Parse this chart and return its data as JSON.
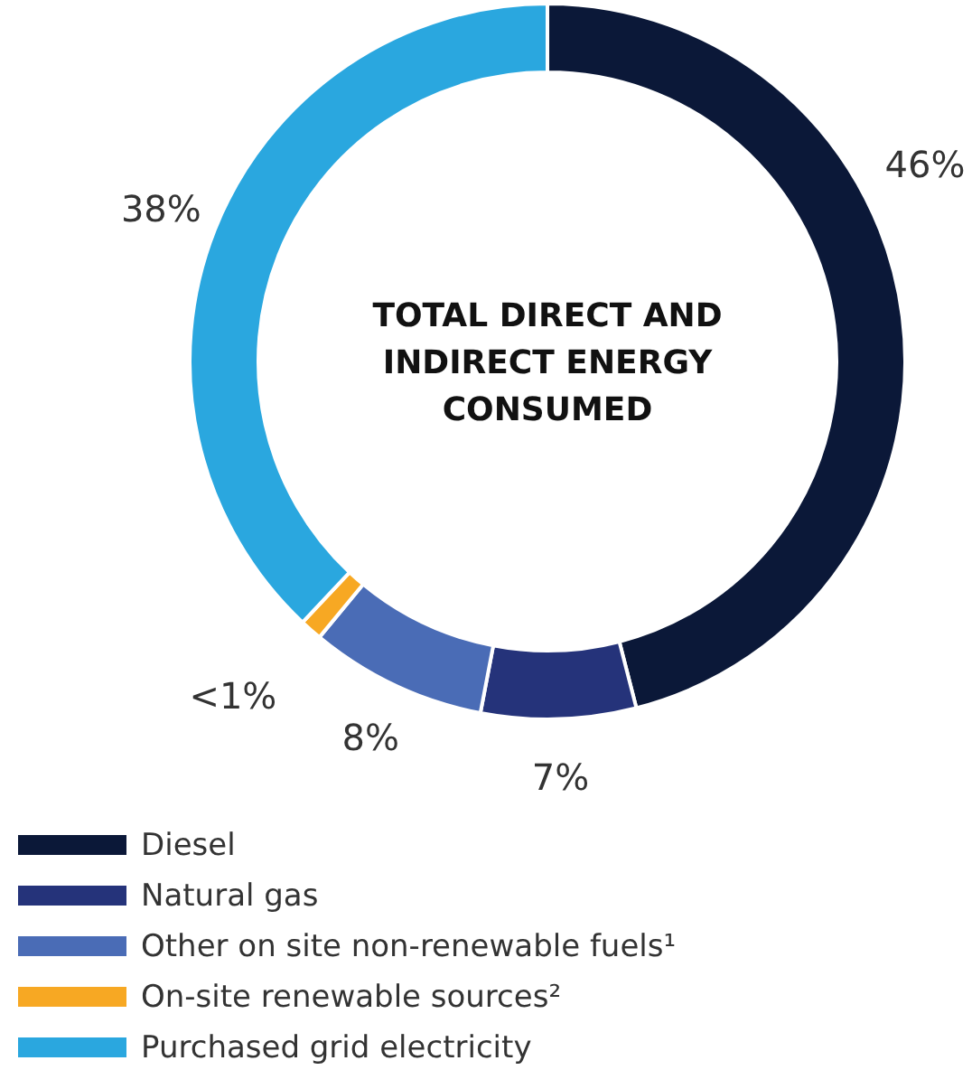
{
  "chart_data": {
    "type": "donut",
    "title": "TOTAL DIRECT AND INDIRECT ENERGY CONSUMED",
    "categories": [
      "Diesel",
      "Natural gas",
      "Other on site non-renewable fuels¹",
      "On-site renewable sources²",
      "Purchased grid electricity"
    ],
    "values": [
      46,
      7,
      8,
      1,
      38
    ],
    "value_labels": [
      "46%",
      "7%",
      "8%",
      "<1%",
      "38%"
    ],
    "colors": [
      "#0b1838",
      "#25337a",
      "#4a6cb6",
      "#f7a823",
      "#2aa7df"
    ],
    "legend": "bottom"
  }
}
